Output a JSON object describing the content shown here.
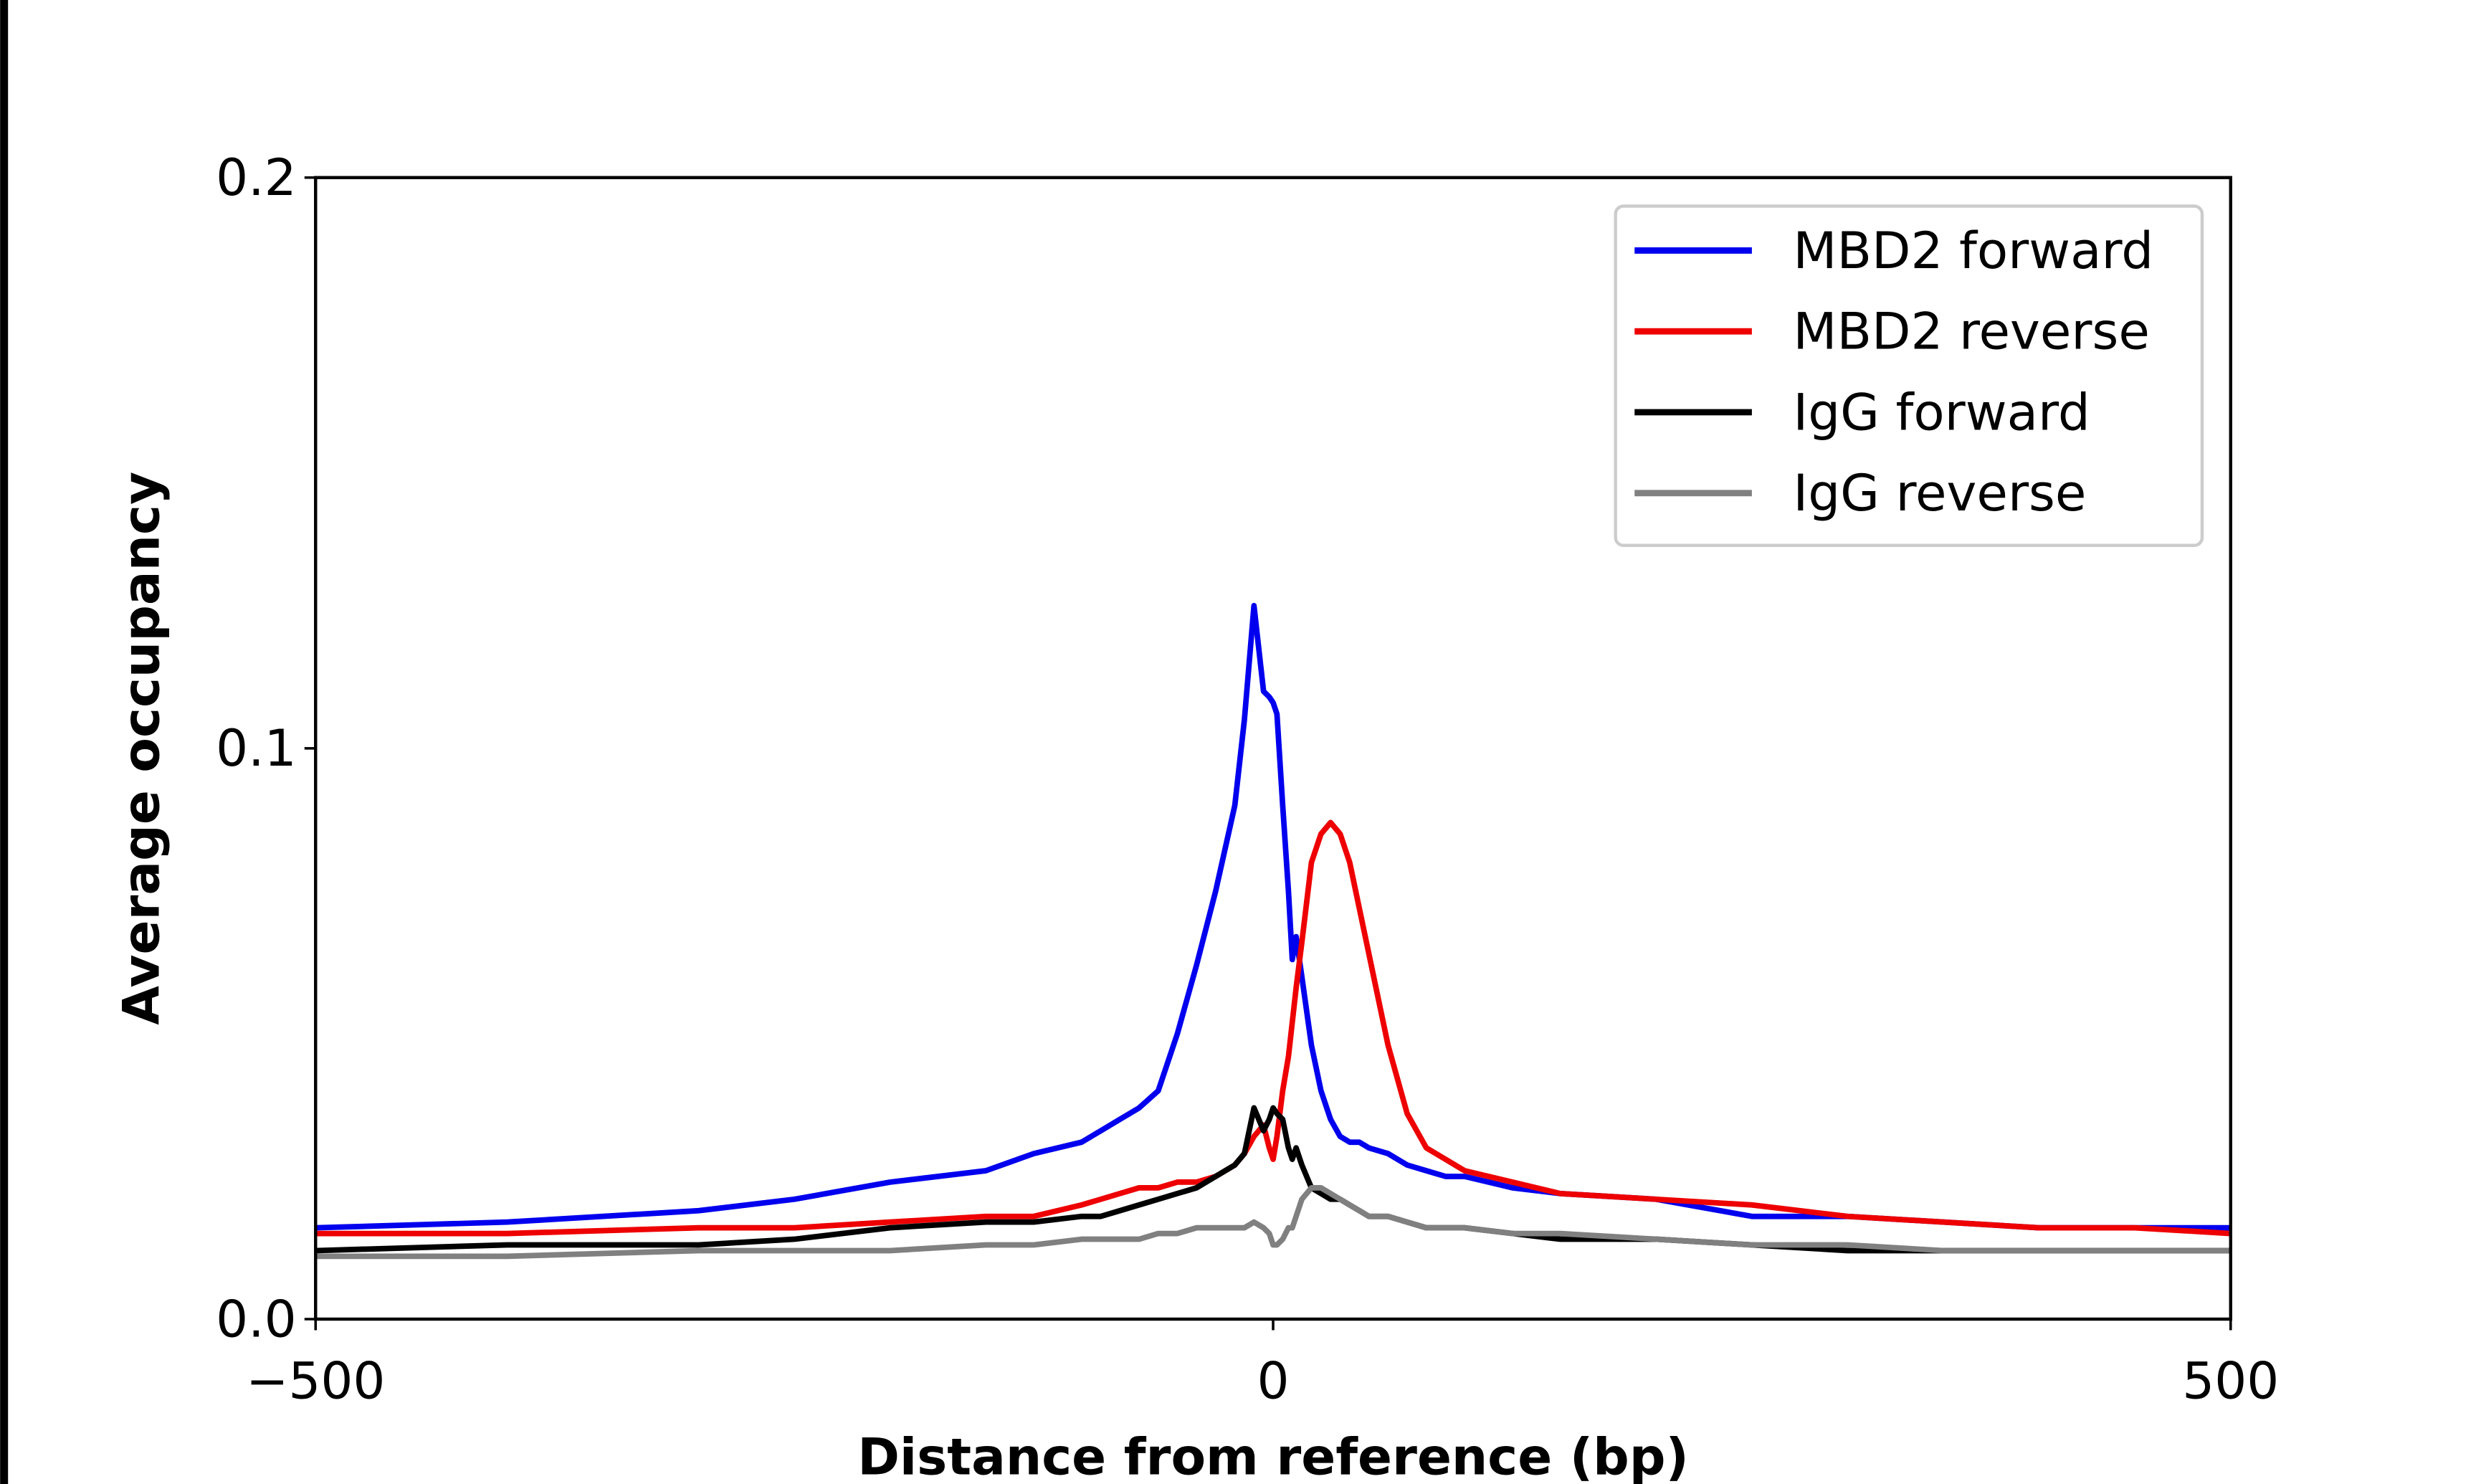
{
  "chart_data": {
    "type": "line",
    "xlabel": "Distance from reference (bp)",
    "ylabel": "Average occupancy",
    "x": [
      -500,
      -400,
      -300,
      -250,
      -200,
      -150,
      -125,
      -100,
      -90,
      -80,
      -70,
      -60,
      -50,
      -40,
      -30,
      -20,
      -15,
      -10,
      -5,
      -2,
      0,
      2,
      5,
      8,
      10,
      12,
      15,
      20,
      25,
      30,
      35,
      40,
      45,
      50,
      60,
      70,
      80,
      90,
      100,
      125,
      150,
      200,
      250,
      300,
      350,
      400,
      450,
      500
    ],
    "series": [
      {
        "name": "MBD2 forward",
        "color": "#0000ee",
        "values": [
          0.016,
          0.017,
          0.019,
          0.021,
          0.024,
          0.026,
          0.029,
          0.031,
          0.033,
          0.035,
          0.037,
          0.04,
          0.05,
          0.062,
          0.075,
          0.09,
          0.105,
          0.125,
          0.11,
          0.109,
          0.108,
          0.106,
          0.09,
          0.075,
          0.063,
          0.067,
          0.06,
          0.048,
          0.04,
          0.035,
          0.032,
          0.031,
          0.031,
          0.03,
          0.029,
          0.027,
          0.026,
          0.025,
          0.025,
          0.023,
          0.022,
          0.021,
          0.018,
          0.018,
          0.017,
          0.016,
          0.016,
          0.016
        ]
      },
      {
        "name": "MBD2 reverse",
        "color": "#ee0000",
        "values": [
          0.015,
          0.015,
          0.016,
          0.016,
          0.017,
          0.018,
          0.018,
          0.02,
          0.021,
          0.022,
          0.023,
          0.023,
          0.024,
          0.024,
          0.025,
          0.027,
          0.029,
          0.032,
          0.034,
          0.03,
          0.028,
          0.032,
          0.04,
          0.046,
          0.052,
          0.058,
          0.066,
          0.08,
          0.085,
          0.087,
          0.085,
          0.08,
          0.072,
          0.064,
          0.048,
          0.036,
          0.03,
          0.028,
          0.026,
          0.024,
          0.022,
          0.021,
          0.02,
          0.018,
          0.017,
          0.016,
          0.016,
          0.015
        ]
      },
      {
        "name": "IgG forward",
        "color": "#000000",
        "values": [
          0.012,
          0.013,
          0.013,
          0.014,
          0.016,
          0.017,
          0.017,
          0.018,
          0.018,
          0.019,
          0.02,
          0.021,
          0.022,
          0.023,
          0.025,
          0.027,
          0.029,
          0.037,
          0.033,
          0.035,
          0.037,
          0.036,
          0.035,
          0.03,
          0.028,
          0.03,
          0.027,
          0.023,
          0.022,
          0.021,
          0.021,
          0.02,
          0.019,
          0.018,
          0.018,
          0.017,
          0.016,
          0.016,
          0.016,
          0.015,
          0.014,
          0.014,
          0.013,
          0.012,
          0.012,
          0.012,
          0.012,
          0.012
        ]
      },
      {
        "name": "IgG reverse",
        "color": "#808080",
        "values": [
          0.011,
          0.011,
          0.012,
          0.012,
          0.012,
          0.013,
          0.013,
          0.014,
          0.014,
          0.014,
          0.014,
          0.015,
          0.015,
          0.016,
          0.016,
          0.016,
          0.016,
          0.017,
          0.016,
          0.015,
          0.013,
          0.013,
          0.014,
          0.016,
          0.016,
          0.018,
          0.021,
          0.023,
          0.023,
          0.022,
          0.021,
          0.02,
          0.019,
          0.018,
          0.018,
          0.017,
          0.016,
          0.016,
          0.016,
          0.015,
          0.015,
          0.014,
          0.013,
          0.013,
          0.012,
          0.012,
          0.012,
          0.012
        ]
      }
    ],
    "xlim": [
      -500,
      500
    ],
    "xticks": [
      {
        "value": -500,
        "label": "−500"
      },
      0,
      500
    ],
    "ylim": [
      0,
      0.2
    ],
    "yticks": [
      {
        "value": 0,
        "label": "0.0"
      },
      0.1,
      0.2
    ],
    "legend": "upper right"
  }
}
